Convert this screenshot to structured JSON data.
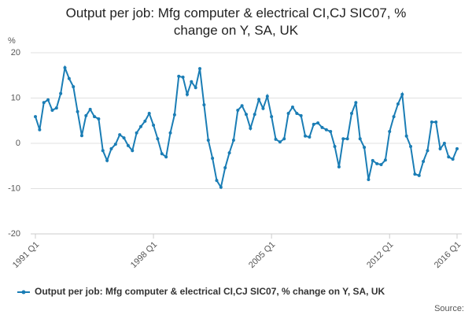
{
  "chart_data": {
    "type": "line",
    "title": "Output per job: Mfg computer & electrical CI,CJ SIC07, % change on Y, SA, UK",
    "y_label": "%",
    "source": "Source:",
    "categories": [
      "1991 Q1",
      null,
      null,
      null,
      null,
      null,
      null,
      null,
      null,
      null,
      null,
      null,
      null,
      null,
      null,
      null,
      null,
      null,
      null,
      null,
      null,
      null,
      null,
      null,
      null,
      null,
      null,
      null,
      "1998 Q1",
      null,
      null,
      null,
      null,
      null,
      null,
      null,
      null,
      null,
      null,
      null,
      null,
      null,
      null,
      null,
      null,
      null,
      null,
      null,
      null,
      null,
      null,
      null,
      null,
      null,
      null,
      null,
      "2005 Q1",
      null,
      null,
      null,
      null,
      null,
      null,
      null,
      null,
      null,
      null,
      null,
      null,
      null,
      null,
      null,
      null,
      null,
      null,
      null,
      null,
      null,
      null,
      null,
      null,
      null,
      null,
      null,
      "2012 Q1",
      null,
      null,
      null,
      null,
      null,
      null,
      null,
      null,
      null,
      null,
      null,
      null,
      null,
      null,
      null,
      "2016 Q1"
    ],
    "series": [
      {
        "name": "Output per job: Mfg computer & electrical CI,CJ SIC07, % change on Y, SA, UK",
        "color": "#1a7db5",
        "values": [
          5.9,
          3.0,
          9.0,
          9.6,
          7.3,
          7.8,
          11.0,
          16.7,
          14.3,
          12.5,
          7.0,
          1.7,
          6.1,
          7.5,
          5.9,
          5.4,
          -1.6,
          -3.8,
          -1.2,
          -0.2,
          1.9,
          1.2,
          -0.5,
          -1.6,
          2.3,
          3.7,
          4.9,
          6.6,
          4.0,
          1.0,
          -2.3,
          -3.0,
          2.3,
          6.3,
          14.8,
          14.6,
          10.8,
          13.6,
          12.3,
          16.5,
          8.5,
          0.7,
          -3.3,
          -8.2,
          -9.7,
          -5.4,
          -2.1,
          0.7,
          7.3,
          8.3,
          6.4,
          3.3,
          6.4,
          9.7,
          7.7,
          10.4,
          5.9,
          0.9,
          0.3,
          1.0,
          6.6,
          8.0,
          6.6,
          6.1,
          1.6,
          1.4,
          4.2,
          4.5,
          3.5,
          3.0,
          2.6,
          -0.7,
          -5.2,
          1.0,
          1.0,
          6.6,
          9.0,
          1.0,
          -0.9,
          -8.0,
          -3.8,
          -4.5,
          -4.7,
          -3.7,
          2.6,
          5.9,
          8.7,
          10.8,
          1.6,
          -0.7,
          -6.8,
          -7.1,
          -4.0,
          -1.6,
          4.7,
          4.7,
          -1.2,
          0.0,
          -3.0,
          -3.5,
          -1.2
        ]
      }
    ],
    "ylim": [
      -20,
      20
    ],
    "yticks": [
      -20,
      -10,
      0,
      10,
      20
    ],
    "grid": true,
    "legend": "bottom"
  }
}
